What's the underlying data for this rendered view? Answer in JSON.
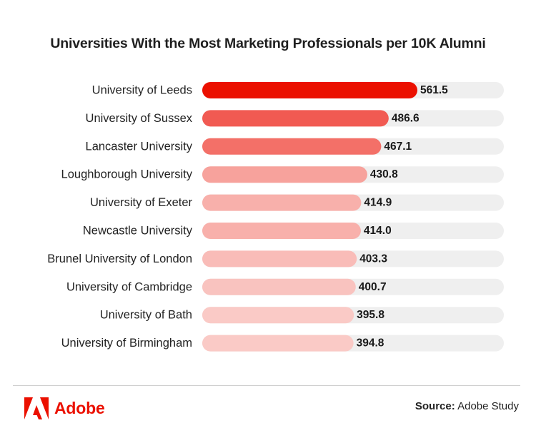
{
  "chart_data": {
    "type": "bar",
    "orientation": "horizontal",
    "title": "Universities With the Most Marketing Professionals per 10K Alumni",
    "categories": [
      "University of Leeds",
      "University of Sussex",
      "Lancaster University",
      "Loughborough University",
      "University of Exeter",
      "Newcastle University",
      "Brunel University of London",
      "University of Cambridge",
      "University of Bath",
      "University of Birmingham"
    ],
    "values": [
      561.5,
      486.6,
      467.1,
      430.8,
      414.9,
      414.0,
      403.3,
      400.7,
      395.8,
      394.8
    ],
    "value_labels": [
      "561.5",
      "486.6",
      "467.1",
      "430.8",
      "414.9",
      "414.0",
      "403.3",
      "400.7",
      "395.8",
      "394.8"
    ],
    "xlim": [
      0,
      800
    ],
    "bar_colors": [
      "#eb1000",
      "#f15a52",
      "#f37068",
      "#f7a29c",
      "#f8b0ab",
      "#f8b0ab",
      "#f9bcb8",
      "#f9c3bf",
      "#facac6",
      "#facac6"
    ],
    "track_color": "#efefef",
    "grid": false,
    "legend": "none"
  },
  "footer": {
    "brand": "Adobe",
    "brand_color": "#eb1000",
    "source_label": "Source:",
    "source_text": "Adobe Study"
  }
}
